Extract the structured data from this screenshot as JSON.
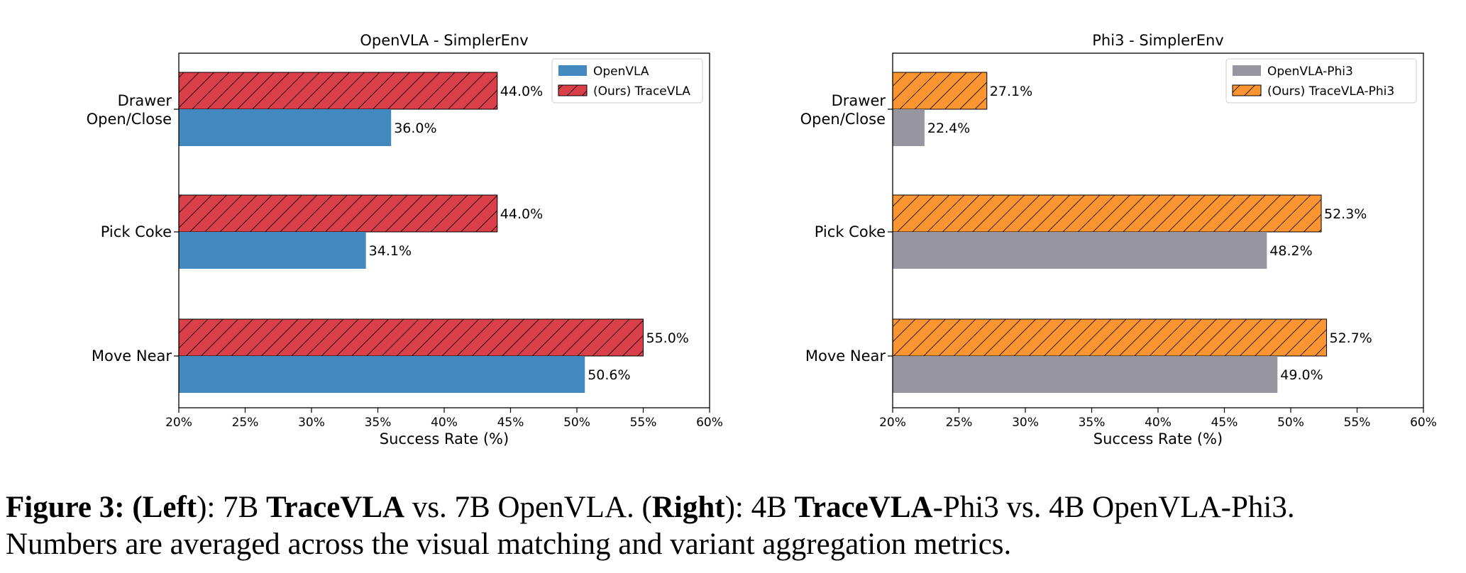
{
  "chart_data": [
    {
      "type": "bar",
      "orientation": "horizontal",
      "title": "OpenVLA - SimplerEnv",
      "xlabel": "Success Rate (%)",
      "ylabel": "",
      "categories": [
        "Drawer\nOpen/Close",
        "Pick Coke",
        "Move Near"
      ],
      "series": [
        {
          "name": "OpenVLA",
          "values": [
            36.0,
            34.1,
            50.6
          ],
          "color": "#4189bf",
          "hatch": false
        },
        {
          "name": "(Ours) TraceVLA",
          "values": [
            44.0,
            44.0,
            55.0
          ],
          "color": "#d9404a",
          "hatch": true
        }
      ],
      "value_labels": {
        "OpenVLA": [
          "36.0%",
          "34.1%",
          "50.6%"
        ],
        "(Ours) TraceVLA": [
          "44.0%",
          "44.0%",
          "55.0%"
        ]
      },
      "xlim": [
        20,
        60
      ],
      "xticks": [
        "20%",
        "25%",
        "30%",
        "35%",
        "40%",
        "45%",
        "50%",
        "55%",
        "60%"
      ],
      "grid": false,
      "legend_position": "top-right"
    },
    {
      "type": "bar",
      "orientation": "horizontal",
      "title": "Phi3 - SimplerEnv",
      "xlabel": "Success Rate (%)",
      "ylabel": "",
      "categories": [
        "Drawer\nOpen/Close",
        "Pick Coke",
        "Move Near"
      ],
      "series": [
        {
          "name": "OpenVLA-Phi3",
          "values": [
            22.4,
            48.2,
            49.0
          ],
          "color": "#9796a0",
          "hatch": false
        },
        {
          "name": "(Ours) TraceVLA-Phi3",
          "values": [
            27.1,
            52.3,
            52.7
          ],
          "color": "#fb9531",
          "hatch": true
        }
      ],
      "value_labels": {
        "OpenVLA-Phi3": [
          "22.4%",
          "48.2%",
          "49.0%"
        ],
        "(Ours) TraceVLA-Phi3": [
          "27.1%",
          "52.3%",
          "52.7%"
        ]
      },
      "xlim": [
        20,
        60
      ],
      "xticks": [
        "20%",
        "25%",
        "30%",
        "35%",
        "40%",
        "45%",
        "50%",
        "55%",
        "60%"
      ],
      "grid": false,
      "legend_position": "top-right"
    }
  ],
  "caption": {
    "label": "Figure 3:",
    "left_open": "(",
    "left_word": "Left",
    "left_close": "): 7B ",
    "tracevla": "TraceVLA",
    "vs1": " vs. 7B OpenVLA. (",
    "right_word": "Right",
    "right_close": "): 4B ",
    "tracevla2": "TraceVLA",
    "tail1": "-Phi3 vs. 4B OpenVLA-Phi3.",
    "line2": "Numbers are averaged across the visual matching and variant aggregation metrics."
  }
}
